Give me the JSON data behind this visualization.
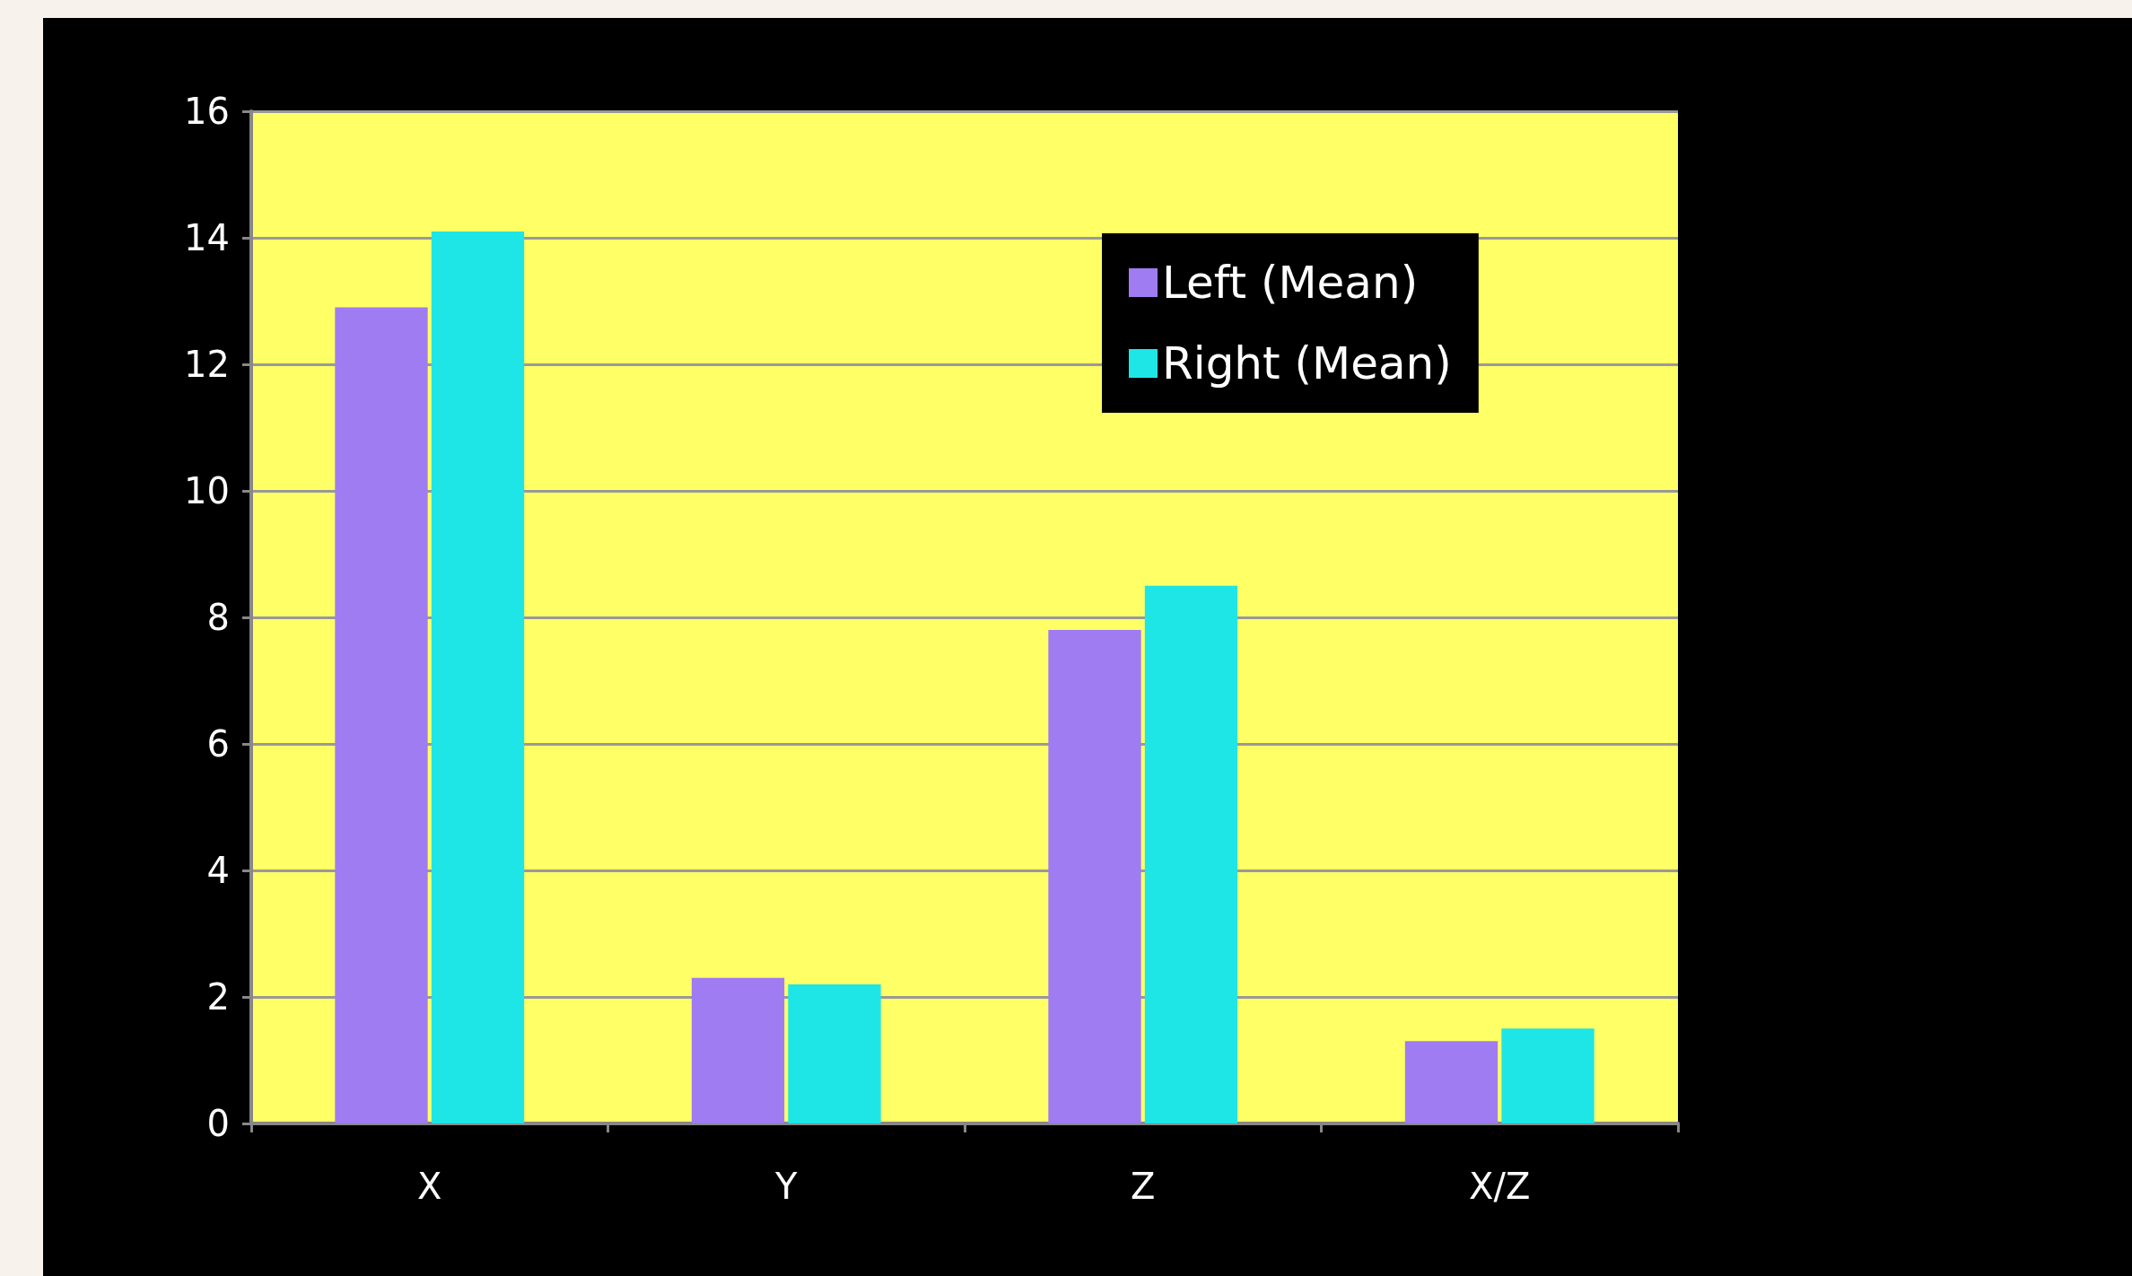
{
  "chart_data": {
    "type": "bar",
    "categories": [
      "X",
      "Y",
      "Z",
      "X/Z"
    ],
    "series": [
      {
        "name": "Left (Mean)",
        "color": "#9f7cf2",
        "values": [
          12.9,
          2.3,
          7.8,
          1.3
        ]
      },
      {
        "name": "Right (Mean)",
        "color": "#1ee6e6",
        "values": [
          14.1,
          2.2,
          8.5,
          1.5
        ]
      }
    ],
    "ylim": [
      0,
      16
    ],
    "yticks": [
      0,
      2,
      4,
      6,
      8,
      10,
      12,
      14,
      16
    ],
    "grid": "y",
    "legend": "top right"
  }
}
